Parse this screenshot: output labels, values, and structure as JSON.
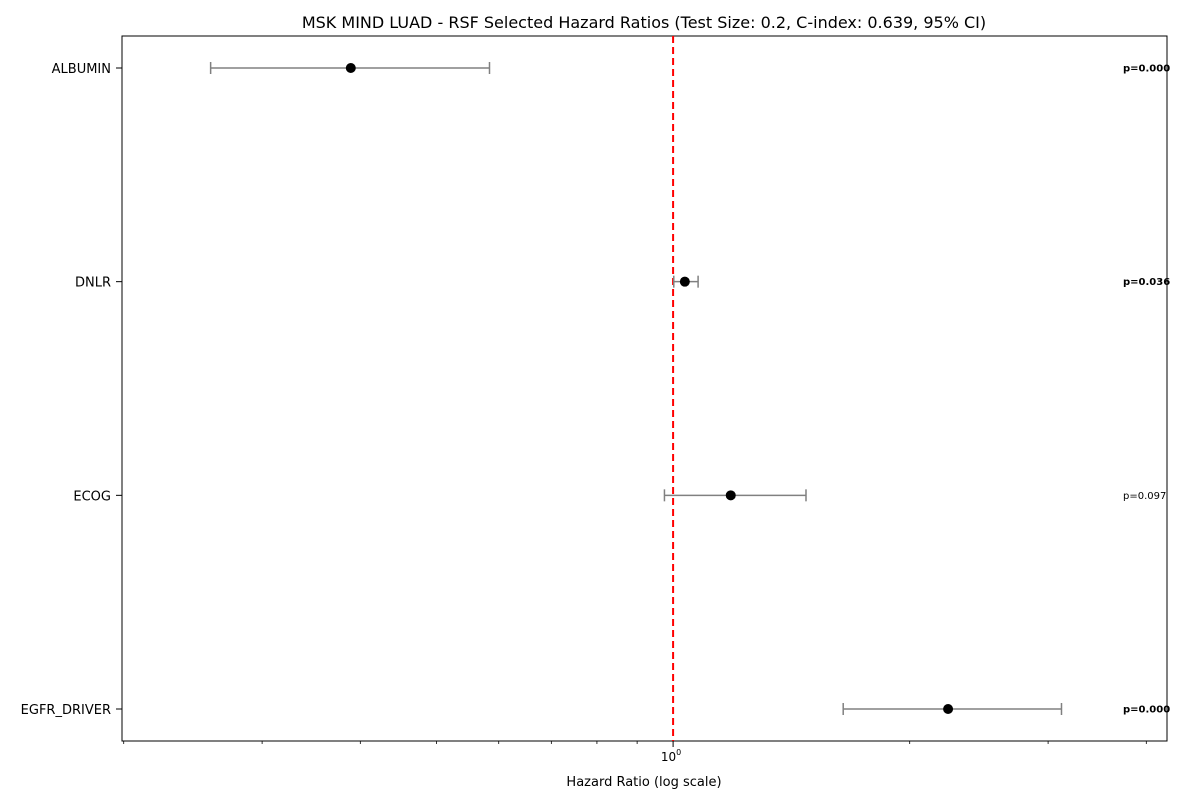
{
  "chart_data": {
    "type": "forest",
    "title": "MSK MIND LUAD - RSF Selected Hazard Ratios (Test Size: 0.2, C-index: 0.639, 95% CI)",
    "xlabel": "Hazard Ratio (log scale)",
    "ylabel": "",
    "xscale": "log",
    "xlim": [
      0.199,
      4.25
    ],
    "reference_line": {
      "x": 1.0,
      "color": "#ff0000",
      "style": "dashed"
    },
    "xticks": [
      {
        "value": 1.0,
        "label": "10^0",
        "base": "10",
        "exp": "0"
      }
    ],
    "minor_ticks": [
      0.2,
      0.3,
      0.4,
      0.5,
      0.6,
      0.7,
      0.8,
      0.9,
      2,
      3,
      4
    ],
    "grid": false,
    "categories": [
      "ALBUMIN",
      "DNLR",
      "ECOG",
      "EGFR_DRIVER"
    ],
    "series": [
      {
        "values": [
          {
            "label": "ALBUMIN",
            "hr": 0.389,
            "ci_low": 0.258,
            "ci_high": 0.584,
            "p_text": "p=0.000",
            "significant": true
          },
          {
            "label": "DNLR",
            "hr": 1.035,
            "ci_low": 1.002,
            "ci_high": 1.076,
            "p_text": "p=0.036",
            "significant": true
          },
          {
            "label": "ECOG",
            "hr": 1.184,
            "ci_low": 0.975,
            "ci_high": 1.476,
            "p_text": "p=0.097",
            "significant": false
          },
          {
            "label": "EGFR_DRIVER",
            "hr": 2.238,
            "ci_low": 1.646,
            "ci_high": 3.12,
            "p_text": "p=0.000",
            "significant": true
          }
        ]
      }
    ],
    "colors": {
      "point": "#000000",
      "errorbar": "#808080",
      "refline": "#ff0000",
      "axis": "#000000"
    }
  }
}
